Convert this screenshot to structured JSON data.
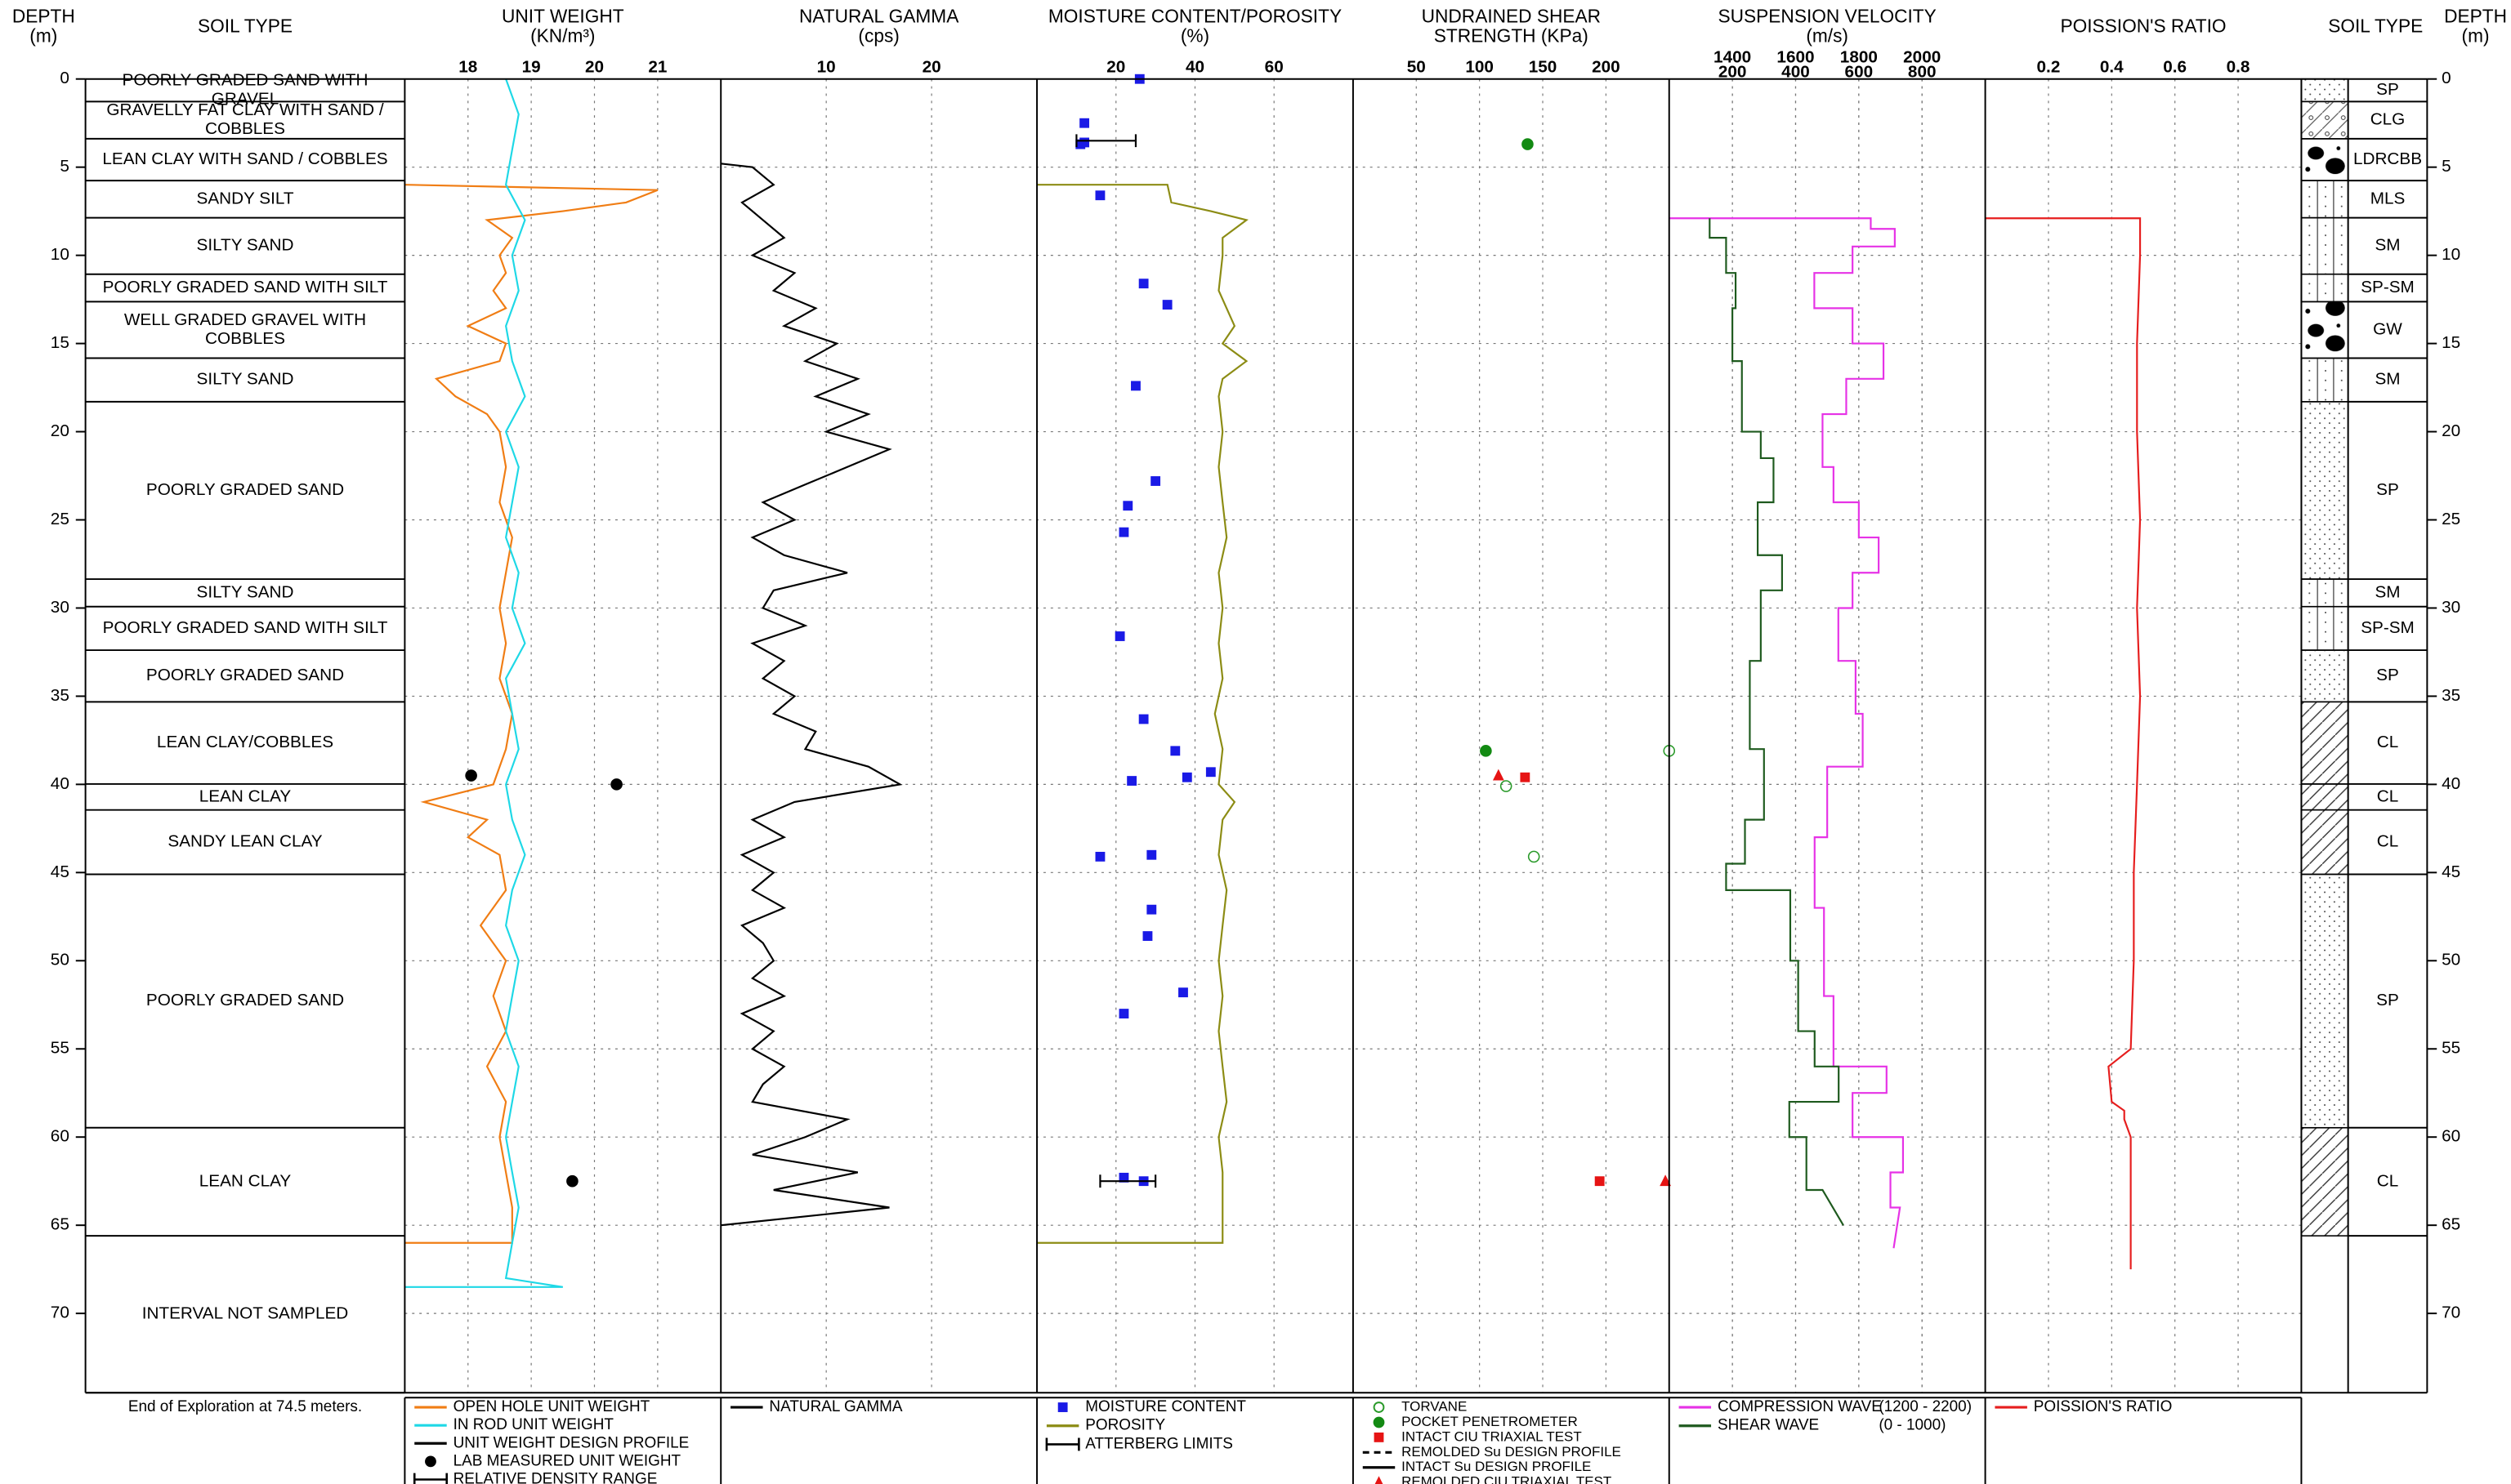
{
  "depth_axis": {
    "title": [
      "DEPTH",
      "(m)"
    ],
    "ylim": [
      0,
      74.5
    ],
    "yticks": [
      0,
      5,
      10,
      15,
      20,
      25,
      30,
      35,
      40,
      45,
      50,
      55,
      60,
      65,
      70
    ]
  },
  "soil_column_title": "SOIL TYPE",
  "note": "End of Exploration at 74.5 meters.",
  "soil_layers": [
    {
      "top": 0,
      "bottom": 1.28,
      "name": [
        "POORLY GRADED SAND WITH",
        "GRAVEL"
      ],
      "code": "SP"
    },
    {
      "top": 1.28,
      "bottom": 3.39,
      "name": [
        "GRAVELLY FAT CLAY WITH SAND /",
        "COBBLES"
      ],
      "code": "CLG"
    },
    {
      "top": 3.39,
      "bottom": 5.76,
      "name": [
        "LEAN CLAY WITH SAND / COBBLES"
      ],
      "code": "LDRCBB"
    },
    {
      "top": 5.76,
      "bottom": 7.87,
      "name": [
        "SANDY SILT"
      ],
      "code": "MLS"
    },
    {
      "top": 7.87,
      "bottom": 11.07,
      "name": [
        "SILTY SAND"
      ],
      "code": "SM"
    },
    {
      "top": 11.07,
      "bottom": 12.63,
      "name": [
        "POORLY GRADED SAND WITH SILT"
      ],
      "code": "SP-SM"
    },
    {
      "top": 12.63,
      "bottom": 15.83,
      "name": [
        "WELL GRADED GRAVEL WITH",
        "COBBLES"
      ],
      "code": "GW"
    },
    {
      "top": 15.83,
      "bottom": 18.3,
      "name": [
        "SILTY SAND"
      ],
      "code": "SM"
    },
    {
      "top": 18.3,
      "bottom": 28.36,
      "name": [
        "POORLY GRADED SAND"
      ],
      "code": "SP"
    },
    {
      "top": 28.36,
      "bottom": 29.92,
      "name": [
        "SILTY SAND"
      ],
      "code": "SM"
    },
    {
      "top": 29.92,
      "bottom": 32.39,
      "name": [
        "POORLY GRADED SAND WITH SILT"
      ],
      "code": "SP-SM"
    },
    {
      "top": 32.39,
      "bottom": 35.32,
      "name": [
        "POORLY GRADED SAND"
      ],
      "code": "SP"
    },
    {
      "top": 35.32,
      "bottom": 39.98,
      "name": [
        "LEAN CLAY/COBBLES"
      ],
      "code": "CL"
    },
    {
      "top": 39.98,
      "bottom": 41.45,
      "name": [
        "LEAN CLAY"
      ],
      "code": "CL"
    },
    {
      "top": 41.45,
      "bottom": 45.1,
      "name": [
        "SANDY LEAN CLAY"
      ],
      "code": "CL"
    },
    {
      "top": 45.1,
      "bottom": 59.47,
      "name": [
        "POORLY GRADED SAND"
      ],
      "code": "SP"
    },
    {
      "top": 59.47,
      "bottom": 65.6,
      "name": [
        "LEAN CLAY"
      ],
      "code": "CL"
    },
    {
      "top": 65.6,
      "bottom": 74.5,
      "name": [
        "INTERVAL NOT SAMPLED"
      ]
    }
  ],
  "tracks": [
    {
      "title": [
        "UNIT WEIGHT",
        "(KN/m³)"
      ],
      "xlim": [
        17,
        22
      ],
      "xticks": [
        18,
        19,
        20,
        21
      ],
      "series": [
        {
          "name": "OPEN HOLE UNIT WEIGHT",
          "color": "#f07d14",
          "style": "line",
          "depth": [
            6,
            6.3,
            7,
            7.5,
            8,
            9,
            10,
            11,
            12,
            13,
            14,
            15,
            16,
            17,
            18,
            19,
            20,
            22,
            24,
            26,
            28,
            30,
            32,
            34,
            36,
            38,
            40,
            41,
            42,
            43,
            44,
            46,
            48,
            50,
            52,
            54,
            56,
            58,
            60,
            62,
            64,
            66,
            66
          ],
          "values": [
            17,
            21,
            20.5,
            19.5,
            18.3,
            18.7,
            18.5,
            18.6,
            18.4,
            18.6,
            18.0,
            18.6,
            18.5,
            17.5,
            17.8,
            18.3,
            18.5,
            18.6,
            18.5,
            18.7,
            18.6,
            18.5,
            18.6,
            18.5,
            18.7,
            18.6,
            18.4,
            17.3,
            18.3,
            18.0,
            18.5,
            18.6,
            18.2,
            18.6,
            18.4,
            18.6,
            18.3,
            18.6,
            18.5,
            18.6,
            18.7,
            18.7,
            17
          ]
        },
        {
          "name": "IN ROD UNIT WEIGHT",
          "color": "#1ed8e6",
          "style": "line",
          "depth": [
            0,
            2,
            4,
            6,
            8,
            10,
            12,
            14,
            16,
            18,
            20,
            22,
            24,
            26,
            28,
            30,
            32,
            34,
            36,
            38,
            40,
            42,
            44,
            46,
            48,
            50,
            52,
            54,
            56,
            58,
            60,
            62,
            64,
            66,
            68,
            68.5,
            68.5
          ],
          "values": [
            18.6,
            18.8,
            18.7,
            18.6,
            18.9,
            18.7,
            18.8,
            18.6,
            18.7,
            18.9,
            18.6,
            18.8,
            18.7,
            18.6,
            18.8,
            18.7,
            18.9,
            18.6,
            18.7,
            18.8,
            18.6,
            18.7,
            18.9,
            18.7,
            18.6,
            18.8,
            18.7,
            18.6,
            18.8,
            18.7,
            18.6,
            18.7,
            18.8,
            18.7,
            18.6,
            19.5,
            17
          ]
        },
        {
          "name": "UNIT WEIGHT DESIGN PROFILE",
          "color": "#000000",
          "style": "line",
          "depth": [],
          "values": []
        },
        {
          "name": "LAB MEASURED UNIT WEIGHT",
          "color": "#000000",
          "style": "marker",
          "marker": "circle",
          "depth": [
            39.5,
            40,
            62.5
          ],
          "values": [
            18.05,
            20.35,
            19.65
          ]
        },
        {
          "name": "RELATIVE DENSITY RANGE",
          "color": "#000000",
          "style": "errorbar",
          "depth": [],
          "low": [],
          "high": []
        }
      ]
    },
    {
      "title": [
        "NATURAL GAMMA",
        "(cps)"
      ],
      "xlim": [
        0,
        30
      ],
      "xticks": [
        10,
        20
      ],
      "series": [
        {
          "name": "NATURAL GAMMA",
          "color": "#000000",
          "style": "line",
          "depth": [
            4.8,
            5,
            6,
            7,
            8,
            9,
            10,
            11,
            12,
            13,
            14,
            15,
            16,
            17,
            18,
            19,
            20,
            21,
            22,
            23,
            24,
            25,
            26,
            27,
            28,
            29,
            30,
            31,
            32,
            33,
            34,
            35,
            36,
            37,
            38,
            39,
            40,
            41,
            42,
            43,
            44,
            45,
            46,
            47,
            48,
            49,
            50,
            51,
            52,
            53,
            54,
            55,
            56,
            57,
            58,
            59,
            60,
            61,
            62,
            63,
            64,
            65
          ],
          "values": [
            0,
            3,
            5,
            2,
            4,
            6,
            3,
            7,
            5,
            9,
            6,
            11,
            8,
            13,
            9,
            14,
            10,
            16,
            12,
            8,
            4,
            7,
            3,
            6,
            12,
            5,
            4,
            8,
            3,
            6,
            4,
            7,
            5,
            9,
            8,
            14,
            17,
            7,
            3,
            6,
            2,
            5,
            3,
            6,
            2,
            4,
            5,
            3,
            6,
            2,
            5,
            3,
            6,
            4,
            3,
            12,
            8,
            3,
            13,
            5,
            16,
            0
          ]
        }
      ]
    },
    {
      "title": [
        "MOISTURE CONTENT/POROSITY",
        "(%)"
      ],
      "xlim": [
        0,
        80
      ],
      "xticks": [
        20,
        40,
        60
      ],
      "series": [
        {
          "name": "MOISTURE CONTENT",
          "color": "#1a1ae6",
          "style": "marker",
          "marker": "square",
          "depth": [
            0,
            2.5,
            3.7,
            3.6,
            6.6,
            11.6,
            12.8,
            17.4,
            22.8,
            24.2,
            25.7,
            31.6,
            36.3,
            38.1,
            39.8,
            39.6,
            39.3,
            44.1,
            44,
            47.1,
            48.6,
            51.8,
            53,
            62.3,
            62.5
          ],
          "values": [
            26,
            12,
            11,
            12,
            16,
            27,
            33,
            25,
            30,
            23,
            22,
            21,
            27,
            35,
            24,
            38,
            44,
            16,
            29,
            29,
            28,
            37,
            22,
            22,
            27
          ]
        },
        {
          "name": "POROSITY",
          "color": "#8c8c14",
          "style": "line",
          "depth": [
            6,
            6,
            7,
            7.5,
            8,
            9,
            10,
            12,
            14,
            15,
            16,
            17,
            18,
            20,
            22,
            24,
            26,
            28,
            30,
            32,
            34,
            36,
            38,
            40,
            41,
            42,
            44,
            46,
            48,
            50,
            52,
            54,
            56,
            58,
            60,
            62,
            64,
            66,
            66
          ],
          "values": [
            0,
            33,
            34,
            44,
            53,
            47,
            47,
            46,
            50,
            47,
            53,
            47,
            46,
            47,
            46,
            47,
            48,
            46,
            47,
            46,
            47,
            45,
            47,
            46,
            50,
            47,
            46,
            48,
            47,
            46,
            47,
            46,
            47,
            48,
            46,
            47,
            47,
            47,
            0
          ]
        },
        {
          "name": "ATTERBERG LIMITS",
          "color": "#000000",
          "style": "errorbar",
          "depth": [
            3.5,
            62.5
          ],
          "low": [
            10,
            16
          ],
          "high": [
            25,
            30
          ]
        }
      ]
    },
    {
      "title": [
        "UNDRAINED SHEAR",
        "STRENGTH (KPa)"
      ],
      "xlim": [
        0,
        250
      ],
      "xticks": [
        50,
        100,
        150,
        200
      ],
      "series": [
        {
          "name": "TORVANE",
          "color": "#2a9a2a",
          "style": "marker",
          "marker": "open-circle",
          "depth": [
            38.1,
            40.1,
            44.1
          ],
          "values": [
            250,
            121,
            143
          ]
        },
        {
          "name": "POCKET PENETROMETER",
          "color": "#138a13",
          "style": "marker",
          "marker": "circle",
          "depth": [
            3.7,
            38.1
          ],
          "values": [
            138,
            105
          ]
        },
        {
          "name": "INTACT CIU TRIAXIAL TEST",
          "color": "#e61414",
          "style": "marker",
          "marker": "square",
          "depth": [
            39.6,
            62.5
          ],
          "values": [
            136,
            195
          ]
        },
        {
          "name": "REMOLDED Su DESIGN PROFILE",
          "color": "#000000",
          "style": "dash",
          "depth": [],
          "values": []
        },
        {
          "name": "INTACT Su DESIGN PROFILE",
          "color": "#000000",
          "style": "line",
          "depth": [],
          "values": []
        },
        {
          "name": "REMOLDED CIU TRIAXIAL TEST",
          "color": "#e61414",
          "style": "marker",
          "marker": "triangle",
          "depth": [
            39.5,
            62.5
          ],
          "values": [
            115,
            247
          ]
        }
      ]
    },
    {
      "title": [
        "SUSPENSION VELOCITY",
        "(m/s)"
      ],
      "xlim": [
        1200,
        2200
      ],
      "xticks": [
        1400,
        1600,
        1800,
        2000
      ],
      "x2lim": [
        0,
        1000
      ],
      "x2ticks": [
        200,
        400,
        600,
        800
      ],
      "series": [
        {
          "name": "COMPRESSION WAVE",
          "range_label": "(1200 - 2200)",
          "color": "#e632e6",
          "style": "line",
          "depth": [
            7.9,
            7.9,
            8.5,
            8.5,
            9.5,
            9.5,
            11,
            11,
            13,
            13,
            15,
            15,
            17,
            17,
            19,
            19,
            22,
            22,
            24,
            24,
            26,
            26,
            28,
            28,
            30,
            30,
            33,
            33,
            36,
            36,
            39,
            39,
            43,
            43,
            47,
            47,
            52,
            52,
            56,
            56,
            57.5,
            57.5,
            60,
            60,
            62,
            62,
            64,
            64,
            66.3
          ],
          "values": [
            1200,
            1838,
            1838,
            1914,
            1914,
            1780,
            1780,
            1659,
            1659,
            1780,
            1780,
            1878,
            1878,
            1760,
            1760,
            1685,
            1685,
            1720,
            1720,
            1800,
            1800,
            1863,
            1863,
            1780,
            1780,
            1735,
            1735,
            1790,
            1790,
            1812,
            1812,
            1700,
            1700,
            1660,
            1660,
            1690,
            1690,
            1720,
            1720,
            1888,
            1888,
            1780,
            1780,
            1940,
            1940,
            1900,
            1900,
            1930,
            1910
          ]
        },
        {
          "name": "SHEAR WAVE",
          "range_label": "(0 - 1000)",
          "color": "#1e5a1e",
          "style": "line",
          "axis": "x2",
          "depth": [
            7.9,
            9,
            9,
            11,
            11,
            13,
            13,
            16,
            16,
            20,
            20,
            21.5,
            21.5,
            24,
            24,
            27,
            27,
            29,
            29,
            33,
            33,
            38,
            38,
            42,
            42,
            44.5,
            44.5,
            46,
            46,
            50,
            50,
            54,
            54,
            56,
            56,
            58,
            58,
            60,
            60,
            63,
            63,
            65
          ],
          "values": [
            128,
            128,
            180,
            180,
            210,
            210,
            200,
            200,
            230,
            230,
            290,
            290,
            330,
            330,
            280,
            280,
            357,
            357,
            290,
            290,
            255,
            255,
            300,
            300,
            240,
            240,
            180,
            180,
            383,
            383,
            408,
            408,
            460,
            460,
            536,
            536,
            380,
            380,
            434,
            434,
            485,
            551
          ]
        }
      ]
    },
    {
      "title": [
        "POISSION'S RATIO"
      ],
      "xlim": [
        0,
        1
      ],
      "xticks": [
        0.2,
        0.4,
        0.6,
        0.8
      ],
      "series": [
        {
          "name": "POISSION'S RATIO",
          "color": "#e61e1e",
          "style": "line",
          "depth": [
            7.9,
            7.9,
            10,
            15,
            20,
            25,
            30,
            35,
            40,
            45,
            50,
            55,
            56,
            58,
            58.5,
            59,
            60,
            65,
            67.5
          ],
          "values": [
            0,
            0.49,
            0.49,
            0.48,
            0.48,
            0.49,
            0.48,
            0.49,
            0.48,
            0.47,
            0.47,
            0.46,
            0.39,
            0.4,
            0.44,
            0.44,
            0.46,
            0.46,
            0.46
          ]
        }
      ]
    }
  ]
}
